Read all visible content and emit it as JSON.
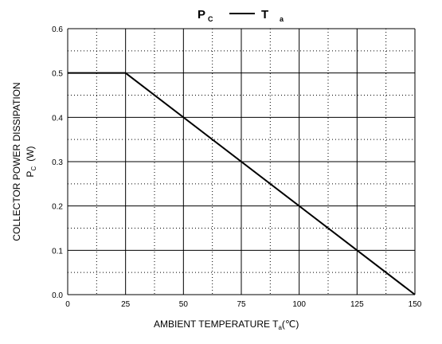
{
  "chart_data": {
    "type": "line",
    "title": {
      "left": "P",
      "left_sub": "C",
      "right": "T",
      "right_sub": "a"
    },
    "xlabel": {
      "main": "AMBIENT TEMPERATURE T",
      "sub": "a",
      "unit": "(℃)"
    },
    "ylabel": {
      "line1": "COLLECTOR POWER DISSIPATION",
      "line2_main": "P",
      "line2_sub": "C",
      "line2_unit": "(W)"
    },
    "xlim": [
      0,
      150
    ],
    "ylim": [
      0,
      0.6
    ],
    "x_ticks": [
      "0",
      "25",
      "50",
      "75",
      "100",
      "125",
      "150"
    ],
    "y_ticks": [
      "0.0",
      "0.1",
      "0.2",
      "0.3",
      "0.4",
      "0.5",
      "0.6"
    ],
    "grid": true,
    "series": [
      {
        "x": [
          0,
          25,
          150
        ],
        "y": [
          0.5,
          0.5,
          0.0
        ]
      }
    ]
  }
}
